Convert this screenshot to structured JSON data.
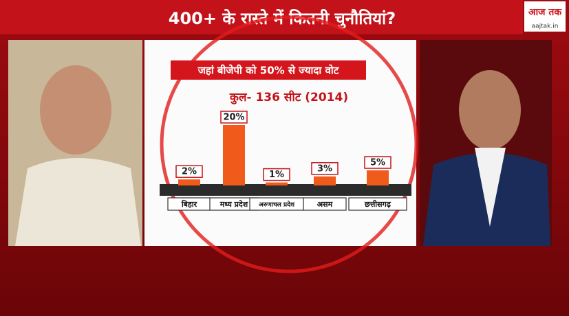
{
  "headline": "400+ के रास्ते में कितनी चुनौतियां?",
  "logo": {
    "name": "आज तक",
    "site": "aajtak.in"
  },
  "chart_data": {
    "type": "bar",
    "title": "जहां बीजेपी को 50% से ज्यादा वोट",
    "subtitle": "कुल- 136 सीट (2014)",
    "categories": [
      "बिहार",
      "मध्य प्रदेश",
      "अरुणाचल प्रदेश",
      "असम",
      "छत्तीसगढ़"
    ],
    "values": [
      2,
      20,
      1,
      3,
      5
    ],
    "value_labels": [
      "2%",
      "20%",
      "1%",
      "3%",
      "5%"
    ],
    "color": "#f05a1a"
  }
}
